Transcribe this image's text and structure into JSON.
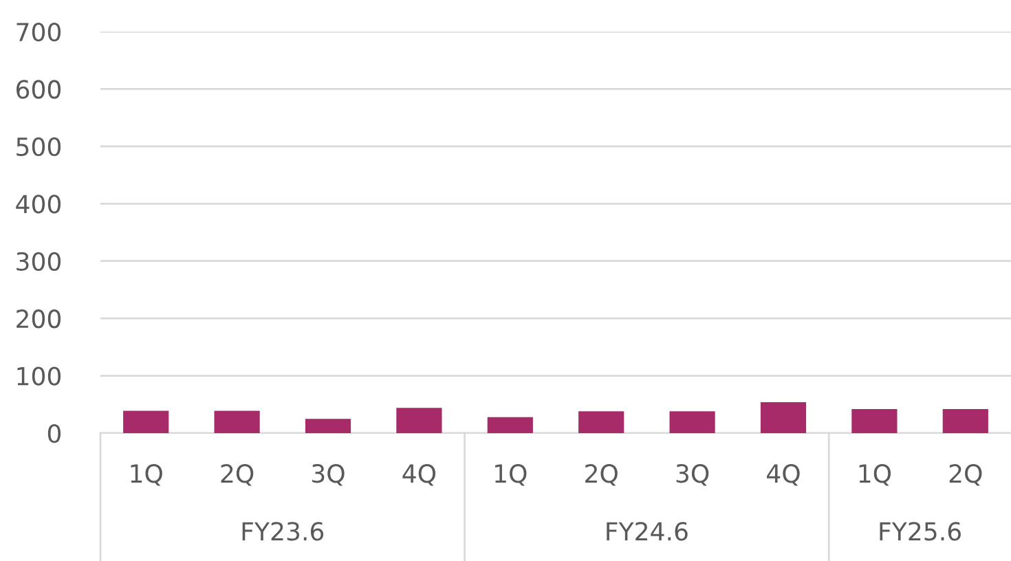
{
  "chart_data": {
    "type": "bar",
    "categories": [
      "1Q",
      "2Q",
      "3Q",
      "4Q",
      "1Q",
      "2Q",
      "3Q",
      "4Q",
      "1Q",
      "2Q"
    ],
    "values": [
      39,
      39,
      25,
      44,
      28,
      38,
      38,
      54,
      42,
      42
    ],
    "color": "#a62b68",
    "ylim": [
      0,
      700
    ],
    "yticks": [
      0,
      100,
      200,
      300,
      400,
      500,
      600,
      700
    ],
    "grid": "y",
    "annotations": [
      "FY23.6",
      "FY24.6",
      "FY25.6"
    ]
  }
}
